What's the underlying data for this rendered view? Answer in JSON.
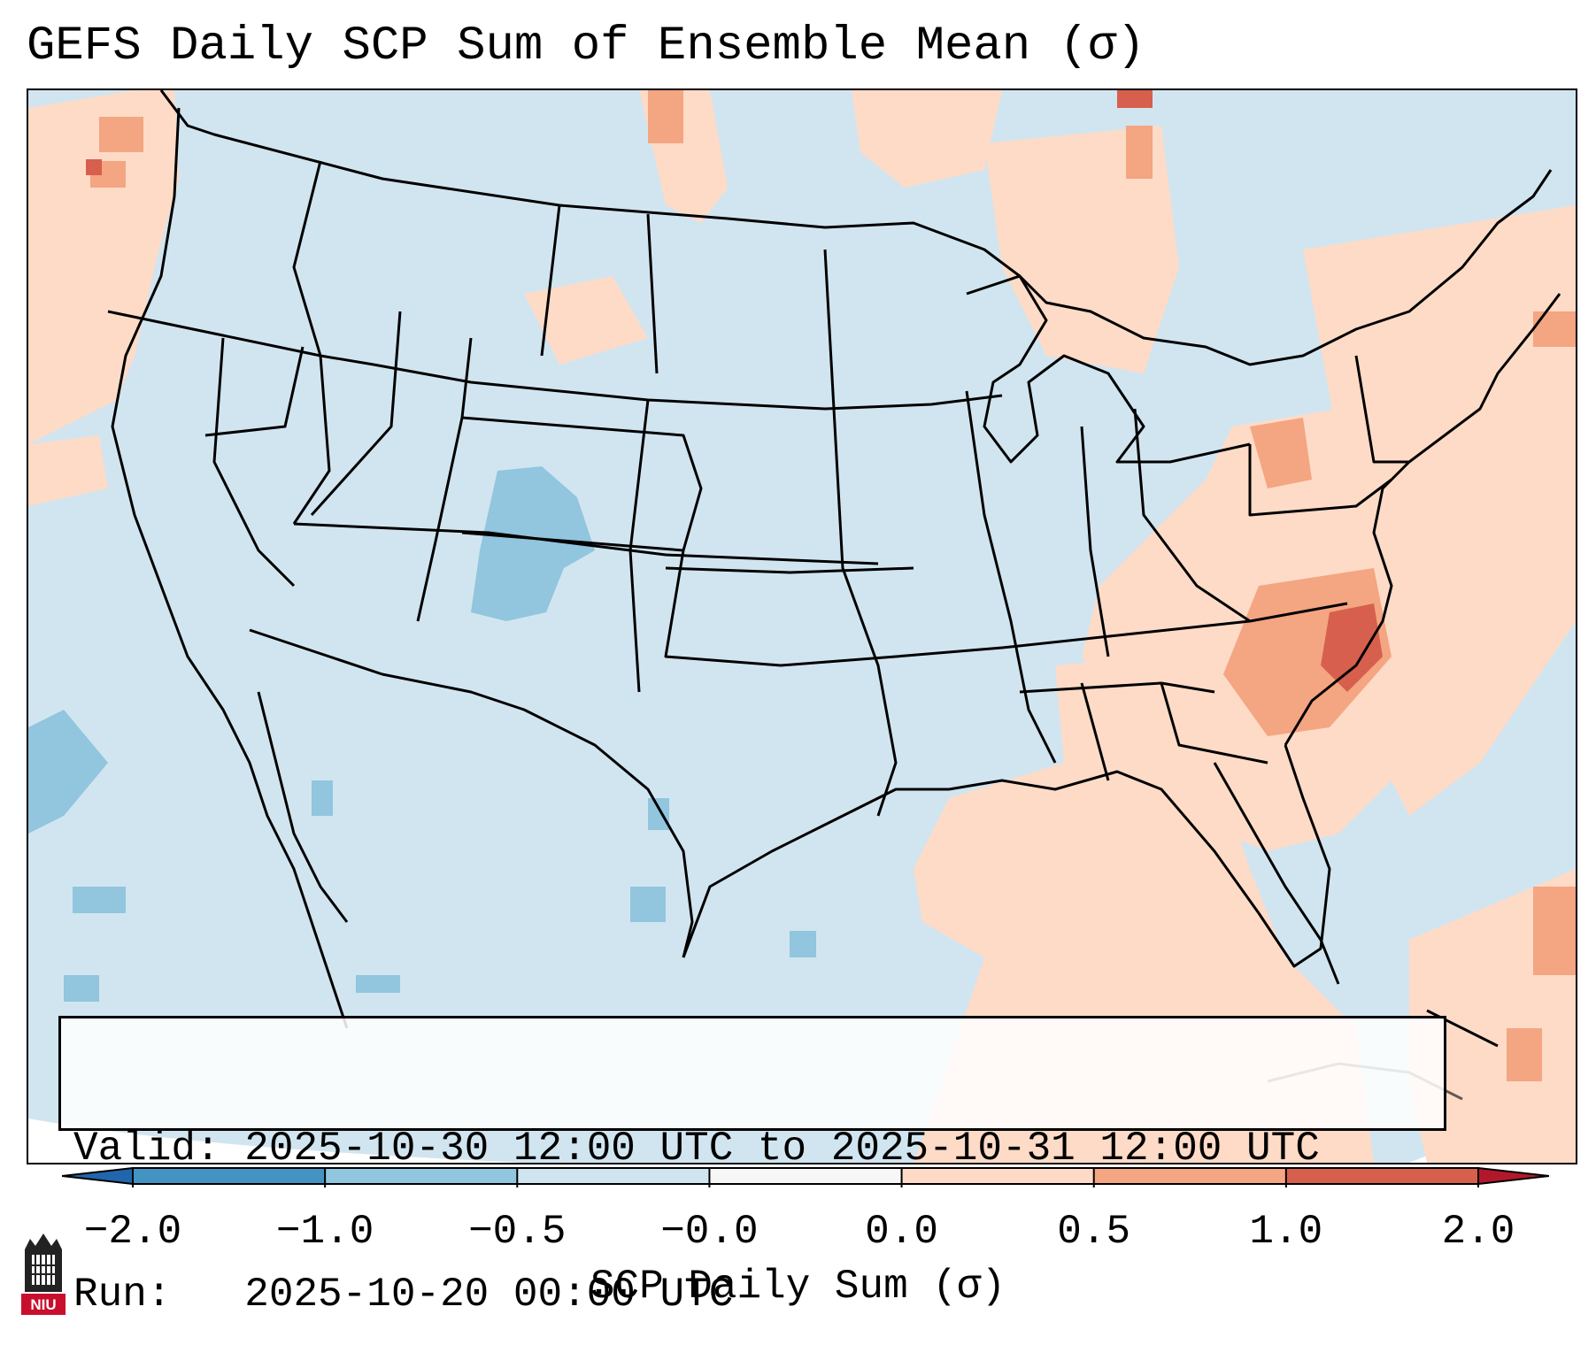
{
  "title": "GEFS Daily SCP Sum of Ensemble Mean (σ)",
  "info": {
    "valid_line": "Valid: 2025-10-30 12:00 UTC to 2025-10-31 12:00 UTC",
    "run_line": "Run:   2025-10-20 00:00 UTC"
  },
  "colorbar": {
    "label": "SCP Daily Sum (σ)",
    "ticks": [
      "−2.0",
      "−1.0",
      "−0.5",
      "−0.0",
      "0.0",
      "0.5",
      "1.0",
      "2.0"
    ],
    "bin_colors": [
      "#4393c3",
      "#92c5de",
      "#d1e5f0",
      "#fddbc7",
      "#f4a582",
      "#d6604d"
    ],
    "under_color": "#2166ac",
    "over_color": "#b2182b"
  },
  "map": {
    "region": "CONUS",
    "background_value_color": "#d1e5f0",
    "outside_projection_color": "#ffffff"
  },
  "logo": {
    "text": "NIU",
    "color": "#c8102e"
  },
  "chart_data": {
    "type": "heatmap",
    "title": "GEFS Daily SCP Sum of Ensemble Mean (σ)",
    "colorbar_label": "SCP Daily Sum (σ)",
    "levels": [
      -2.0,
      -1.0,
      -0.5,
      -0.0,
      0.0,
      0.5,
      1.0,
      2.0
    ],
    "extend": "both",
    "features": [
      {
        "region": "Southeast US / Carolinas",
        "value_range": [
          0.0,
          1.0
        ]
      },
      {
        "region": "Eastern North Carolina",
        "value_range": [
          1.0,
          2.0
        ]
      },
      {
        "region": "Gulf of Mexico / Gulf Coast",
        "value_range": [
          0.0,
          0.5
        ]
      },
      {
        "region": "Western Atlantic",
        "value_range": [
          0.0,
          1.0
        ]
      },
      {
        "region": "Colorado Rockies",
        "value_range": [
          -1.0,
          -0.5
        ]
      },
      {
        "region": "Pacific Northwest coast",
        "value_range": [
          0.0,
          1.0
        ]
      },
      {
        "region": "Southern Canada",
        "value_range": [
          0.0,
          2.0
        ]
      },
      {
        "region": "Eastern Pacific off Baja",
        "value_range": [
          -1.0,
          -0.5
        ]
      }
    ]
  }
}
